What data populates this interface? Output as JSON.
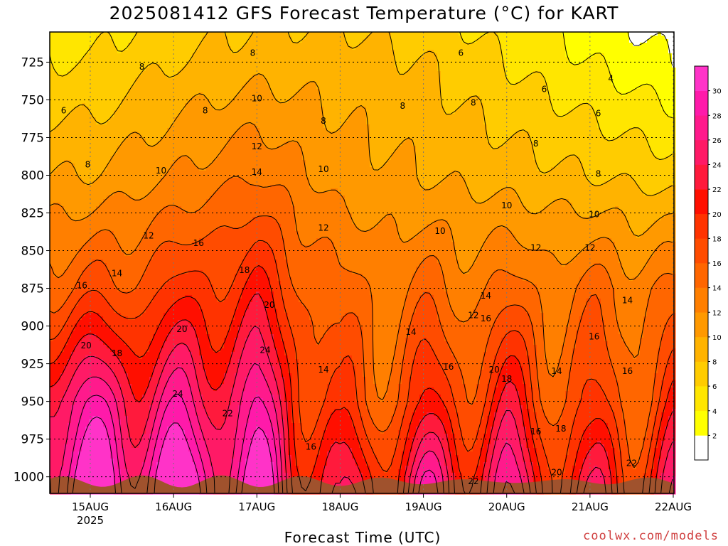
{
  "title": "2025081412 GFS Forecast Temperature (°C) for KART",
  "xlabel": "Forecast Time (UTC)",
  "credit": "coolwx.com/models",
  "chart_data": {
    "type": "heatmap",
    "title": "2025081412 GFS Forecast Temperature (°C) for KART",
    "xlabel": "Forecast Time (UTC)",
    "ylabel": "",
    "x_range_hours_since_first_tick": [
      -0.5,
      7.0
    ],
    "x_ticks": [
      {
        "label": "15AUG",
        "sub": "2025"
      },
      {
        "label": "16AUG",
        "sub": ""
      },
      {
        "label": "17AUG",
        "sub": ""
      },
      {
        "label": "18AUG",
        "sub": ""
      },
      {
        "label": "19AUG",
        "sub": ""
      },
      {
        "label": "20AUG",
        "sub": ""
      },
      {
        "label": "21AUG",
        "sub": ""
      },
      {
        "label": "22AUG",
        "sub": ""
      }
    ],
    "y_ticks": [
      "725",
      "750",
      "775",
      "800",
      "825",
      "850",
      "875",
      "900",
      "925",
      "950",
      "975",
      "1000"
    ],
    "y_values_hpa": [
      725,
      750,
      775,
      800,
      825,
      850,
      875,
      900,
      925,
      950,
      975,
      1000
    ],
    "ylim": [
      1011,
      705
    ],
    "grid": true,
    "colorbar": {
      "ticks": [
        "2",
        "4",
        "6",
        "8",
        "10",
        "12",
        "14",
        "16",
        "18",
        "20",
        "22",
        "24",
        "26",
        "28",
        "30"
      ],
      "colors": [
        "#ffffff",
        "#ffff00",
        "#ffe600",
        "#ffcc00",
        "#ffb300",
        "#ff9900",
        "#ff7f00",
        "#ff6600",
        "#ff4c00",
        "#ff3300",
        "#ff0f00",
        "#ff1a3c",
        "#ff1a66",
        "#ff1a8c",
        "#ff1aaa",
        "#ff33c8"
      ]
    },
    "temperature_profile_by_day": [
      {
        "day": "15AUG",
        "t_725": 6,
        "t_800": 10,
        "t_875": 16,
        "t_950": 26,
        "t_1000": 30
      },
      {
        "day": "16AUG",
        "t_725": 8,
        "t_800": 12,
        "t_875": 18,
        "t_950": 25,
        "t_1000": 30
      },
      {
        "day": "17AUG",
        "t_725": 9,
        "t_800": 14,
        "t_875": 20,
        "t_950": 26,
        "t_1000": 29
      },
      {
        "day": "18AUG",
        "t_725": 9,
        "t_800": 11,
        "t_875": 14,
        "t_950": 16,
        "t_1000": 20
      },
      {
        "day": "19AUG",
        "t_725": 8,
        "t_800": 10,
        "t_875": 14,
        "t_950": 18,
        "t_1000": 24
      },
      {
        "day": "20AUG",
        "t_725": 6,
        "t_800": 9,
        "t_875": 14,
        "t_950": 20,
        "t_1000": 24
      },
      {
        "day": "21AUG",
        "t_725": 4,
        "t_800": 8,
        "t_875": 14,
        "t_950": 16,
        "t_1000": 20
      },
      {
        "day": "22AUG",
        "t_725": 2,
        "t_800": 7,
        "t_875": 14,
        "t_950": 18,
        "t_1000": 22
      }
    ],
    "contour_labels": [
      {
        "text": "6",
        "day": -0.32,
        "p": 757
      },
      {
        "text": "8",
        "day": -0.03,
        "p": 793
      },
      {
        "text": "8",
        "day": 0.62,
        "p": 728
      },
      {
        "text": "10",
        "day": 0.85,
        "p": 797
      },
      {
        "text": "12",
        "day": 0.7,
        "p": 840
      },
      {
        "text": "14",
        "day": 0.32,
        "p": 865
      },
      {
        "text": "16",
        "day": -0.1,
        "p": 873
      },
      {
        "text": "18",
        "day": 0.32,
        "p": 918
      },
      {
        "text": "20",
        "day": -0.05,
        "p": 913
      },
      {
        "text": "8",
        "day": 1.38,
        "p": 757
      },
      {
        "text": "10",
        "day": 2.0,
        "p": 749
      },
      {
        "text": "12",
        "day": 2.0,
        "p": 781
      },
      {
        "text": "14",
        "day": 2.0,
        "p": 798
      },
      {
        "text": "16",
        "day": 1.3,
        "p": 845
      },
      {
        "text": "18",
        "day": 1.85,
        "p": 863
      },
      {
        "text": "20",
        "day": 2.15,
        "p": 886
      },
      {
        "text": "20",
        "day": 1.1,
        "p": 902
      },
      {
        "text": "24",
        "day": 1.05,
        "p": 945
      },
      {
        "text": "24",
        "day": 2.1,
        "p": 916
      },
      {
        "text": "22",
        "day": 1.65,
        "p": 958
      },
      {
        "text": "8",
        "day": 1.95,
        "p": 719
      },
      {
        "text": "8",
        "day": 2.8,
        "p": 764
      },
      {
        "text": "10",
        "day": 2.8,
        "p": 796
      },
      {
        "text": "12",
        "day": 2.8,
        "p": 835
      },
      {
        "text": "14",
        "day": 2.8,
        "p": 929
      },
      {
        "text": "16",
        "day": 2.65,
        "p": 980
      },
      {
        "text": "8",
        "day": 3.75,
        "p": 754
      },
      {
        "text": "10",
        "day": 4.2,
        "p": 837
      },
      {
        "text": "14",
        "day": 3.85,
        "p": 904
      },
      {
        "text": "16",
        "day": 4.3,
        "p": 927
      },
      {
        "text": "6",
        "day": 4.45,
        "p": 719
      },
      {
        "text": "8",
        "day": 4.6,
        "p": 752
      },
      {
        "text": "12",
        "day": 4.6,
        "p": 893
      },
      {
        "text": "14",
        "day": 4.75,
        "p": 880
      },
      {
        "text": "16",
        "day": 4.75,
        "p": 895
      },
      {
        "text": "20",
        "day": 4.85,
        "p": 929
      },
      {
        "text": "18",
        "day": 5.0,
        "p": 935
      },
      {
        "text": "22",
        "day": 4.6,
        "p": 1003
      },
      {
        "text": "6",
        "day": 5.45,
        "p": 743
      },
      {
        "text": "8",
        "day": 5.35,
        "p": 779
      },
      {
        "text": "10",
        "day": 5.0,
        "p": 820
      },
      {
        "text": "12",
        "day": 5.35,
        "p": 848
      },
      {
        "text": "12",
        "day": 6.0,
        "p": 848
      },
      {
        "text": "10",
        "day": 6.05,
        "p": 826
      },
      {
        "text": "8",
        "day": 6.1,
        "p": 799
      },
      {
        "text": "6",
        "day": 6.1,
        "p": 759
      },
      {
        "text": "4",
        "day": 6.25,
        "p": 736
      },
      {
        "text": "14",
        "day": 6.45,
        "p": 883
      },
      {
        "text": "16",
        "day": 6.05,
        "p": 907
      },
      {
        "text": "16",
        "day": 6.45,
        "p": 930
      },
      {
        "text": "14",
        "day": 5.6,
        "p": 930
      },
      {
        "text": "16",
        "day": 5.35,
        "p": 970
      },
      {
        "text": "18",
        "day": 5.65,
        "p": 968
      },
      {
        "text": "20",
        "day": 5.6,
        "p": 997
      },
      {
        "text": "22",
        "day": 6.5,
        "p": 991
      }
    ]
  }
}
